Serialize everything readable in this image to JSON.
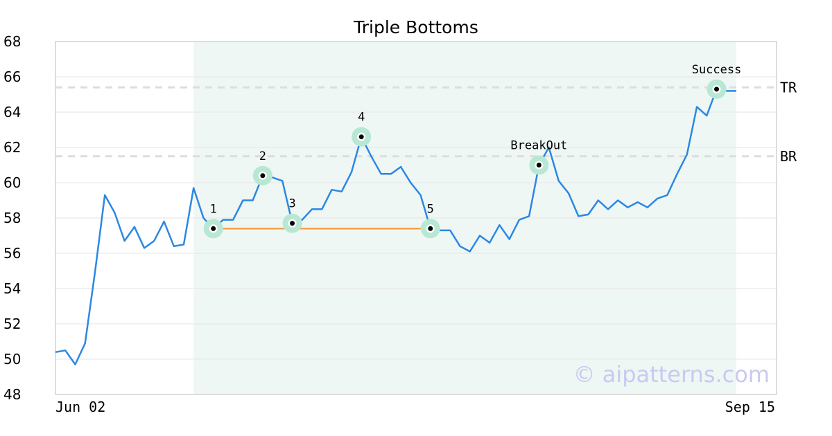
{
  "chart_data": {
    "type": "line",
    "title": "Triple Bottoms",
    "ylim": [
      48,
      68
    ],
    "y_ticks": [
      48,
      50,
      52,
      54,
      56,
      58,
      60,
      62,
      64,
      66,
      68
    ],
    "x_tick_labels": [
      "Jun 02",
      "Sep 15"
    ],
    "grid": "horizontal",
    "series": [
      {
        "values": [
          50.4,
          50.5,
          49.7,
          50.9,
          54.9,
          59.3,
          58.3,
          56.7,
          57.5,
          56.3,
          56.7,
          57.8,
          56.4,
          56.5,
          59.7,
          58.0,
          57.4,
          57.9,
          57.9,
          59.0,
          59.0,
          60.4,
          60.3,
          60.1,
          57.7,
          57.9,
          58.5,
          58.5,
          59.6,
          59.5,
          60.6,
          62.6,
          61.5,
          60.5,
          60.5,
          60.9,
          60.0,
          59.3,
          57.4,
          57.3,
          57.3,
          56.4,
          56.1,
          57.0,
          56.6,
          57.6,
          56.8,
          57.9,
          58.1,
          61.0,
          62.0,
          60.1,
          59.4,
          58.1,
          58.2,
          59.0,
          58.5,
          59.0,
          58.6,
          58.9,
          58.6,
          59.1,
          59.3,
          60.5,
          61.6,
          64.3,
          63.8,
          65.3,
          65.2,
          65.2
        ]
      }
    ],
    "pattern_region": {
      "start_index": 14,
      "end_index": 69
    },
    "bottom_line": {
      "from_index": 16,
      "to_index": 38,
      "value": 57.4
    },
    "levels": [
      {
        "label": "TR",
        "value": 65.4
      },
      {
        "label": "BR",
        "value": 61.5
      }
    ],
    "markers": [
      {
        "label": "1",
        "index": 16,
        "value": 57.4
      },
      {
        "label": "2",
        "index": 21,
        "value": 60.4
      },
      {
        "label": "3",
        "index": 24,
        "value": 57.7
      },
      {
        "label": "4",
        "index": 31,
        "value": 62.6
      },
      {
        "label": "5",
        "index": 38,
        "value": 57.4
      },
      {
        "label": "BreakOut",
        "index": 49,
        "value": 61.0
      },
      {
        "label": "Success",
        "index": 67,
        "value": 65.3
      }
    ],
    "colors": {
      "line": "#2b87e3",
      "bottom_line": "#f4a14a",
      "region": "#eef7f3",
      "marker_halo": "#b8e8d3",
      "level_line": "#dddddd",
      "grid": "#e6e6e6",
      "frame": "#dddddd"
    },
    "watermark": "© aipatterns.com"
  }
}
